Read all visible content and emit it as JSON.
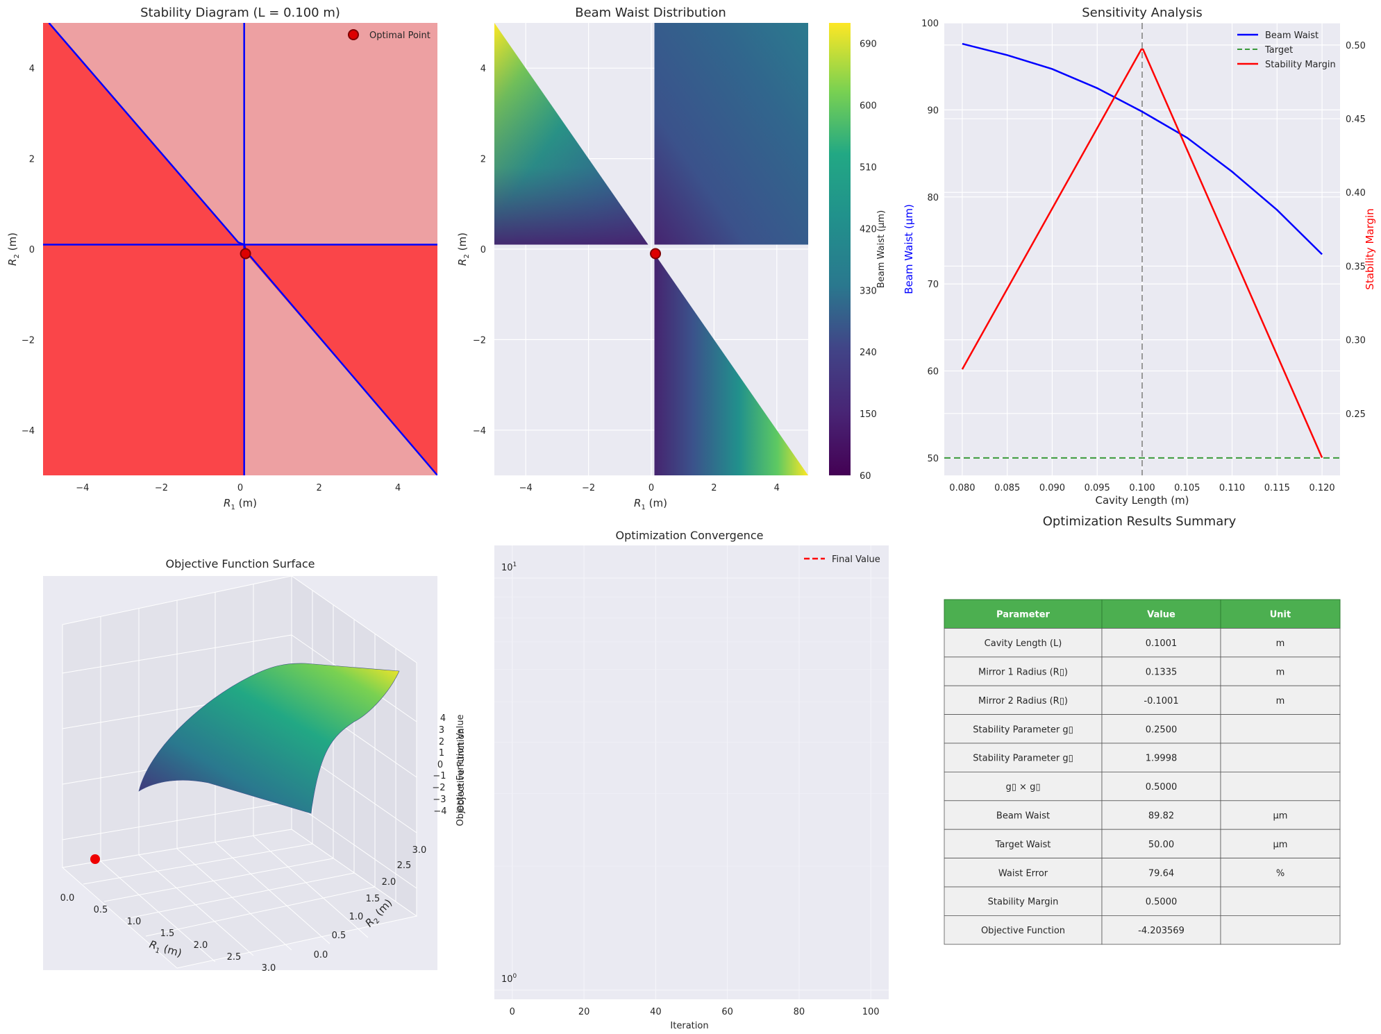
{
  "stability": {
    "title": "Stability Diagram (L = 0.100 m)",
    "xlabel": "R",
    "xlabel_sub": "1",
    "xlabel_unit": " (m)",
    "ylabel": "R",
    "ylabel_sub": "2",
    "ylabel_unit": " (m)",
    "legend": "Optimal Point",
    "colors": {
      "unstable": "#fa4549",
      "stable": "#eda0a2",
      "boundary": "#0000ff",
      "marker": "#dd0000"
    }
  },
  "waist_map": {
    "title": "Beam Waist Distribution",
    "xlabel": "R",
    "xlabel_sub": "1",
    "xlabel_unit": " (m)",
    "ylabel": "R",
    "ylabel_sub": "2",
    "ylabel_unit": " (m)",
    "colorbar_label": "Beam Waist (μm)",
    "colorbar_ticks": [
      "60",
      "150",
      "240",
      "330",
      "420",
      "510",
      "600",
      "690"
    ]
  },
  "sensitivity": {
    "title": "Sensitivity Analysis",
    "xlabel": "Cavity Length (m)",
    "ylabel_left": "Beam Waist (μm)",
    "ylabel_right": "Stability Margin",
    "legend": [
      "Beam Waist",
      "Target",
      "Stability Margin"
    ],
    "colors": {
      "waist": "#0000ff",
      "target": "#3a9a3a",
      "margin": "#ff0000",
      "vline": "#999999"
    }
  },
  "surface": {
    "title": "Objective Function Surface",
    "xlabel": "R",
    "xlabel_sub": "1",
    "xlabel_unit": " (m)",
    "ylabel": "R",
    "ylabel_sub": "2",
    "ylabel_unit": " (m)",
    "zlabel": "Objective Function Value",
    "x_ticks": [
      "0.0",
      "0.5",
      "1.0",
      "1.5",
      "2.0",
      "2.5",
      "3.0"
    ],
    "y_ticks": [
      "0.0",
      "0.5",
      "1.0",
      "1.5",
      "2.0",
      "2.5",
      "3.0"
    ],
    "z_ticks": [
      "−4",
      "−3",
      "−2",
      "−1",
      "0",
      "1",
      "2",
      "3",
      "4"
    ]
  },
  "convergence": {
    "title": "Optimization Convergence",
    "xlabel": "Iteration",
    "ylabel": "Objective Function",
    "legend": "Final Value",
    "y_ticks": [
      {
        "base": "10",
        "exp": "1"
      },
      {
        "base": "10",
        "exp": "0"
      }
    ]
  },
  "summary": {
    "title": "Optimization Results Summary",
    "header_color": "#4caf50",
    "columns": [
      "Parameter",
      "Value",
      "Unit"
    ],
    "rows": [
      [
        "Cavity Length (L)",
        "0.1001",
        "m"
      ],
      [
        "Mirror 1 Radius (R▯)",
        "0.1335",
        "m"
      ],
      [
        "Mirror 2 Radius (R▯)",
        "-0.1001",
        "m"
      ],
      [
        "Stability Parameter g▯",
        "0.2500",
        ""
      ],
      [
        "Stability Parameter g▯",
        "1.9998",
        ""
      ],
      [
        "g▯ × g▯",
        "0.5000",
        ""
      ],
      [
        "Beam Waist",
        "89.82",
        "μm"
      ],
      [
        "Target Waist",
        "50.00",
        "μm"
      ],
      [
        "Waist Error",
        "79.64",
        "%"
      ],
      [
        "Stability Margin",
        "0.5000",
        ""
      ],
      [
        "Objective Function",
        "-4.203569",
        ""
      ]
    ]
  },
  "chart_data": [
    {
      "type": "heatmap",
      "name": "stability",
      "xlim": [
        -5,
        5
      ],
      "ylim": [
        -5,
        5
      ],
      "x_ticks": [
        -4,
        -2,
        0,
        2,
        4
      ],
      "y_ticks": [
        -4,
        -2,
        0,
        2,
        4
      ],
      "L": 0.1,
      "optimal_point": [
        0.1335,
        -0.1001
      ],
      "grid": true
    },
    {
      "type": "heatmap",
      "name": "beam_waist",
      "xlim": [
        -5,
        5
      ],
      "ylim": [
        -5,
        5
      ],
      "x_ticks": [
        -4,
        -2,
        0,
        2,
        4
      ],
      "y_ticks": [
        -4,
        -2,
        0,
        2,
        4
      ],
      "clim": [
        60,
        720
      ],
      "optimal_point": [
        0.1335,
        -0.1001
      ]
    },
    {
      "type": "line",
      "name": "sensitivity",
      "x": [
        0.08,
        0.085,
        0.09,
        0.095,
        0.1,
        0.105,
        0.11,
        0.115,
        0.12
      ],
      "x_ticks": [
        0.08,
        0.085,
        0.09,
        0.095,
        0.1,
        0.105,
        0.11,
        0.115,
        0.12
      ],
      "xlim": [
        0.078,
        0.122
      ],
      "ylim_left": [
        48,
        100
      ],
      "ylim_right": [
        0.208,
        0.515
      ],
      "y_ticks_left": [
        50,
        60,
        70,
        80,
        90,
        100
      ],
      "y_ticks_right": [
        0.25,
        0.3,
        0.35,
        0.4,
        0.45,
        0.5
      ],
      "series": [
        {
          "name": "Beam Waist",
          "axis": "left",
          "values": [
            97.6,
            96.3,
            94.7,
            92.5,
            89.8,
            86.8,
            82.9,
            78.5,
            73.4
          ]
        },
        {
          "name": "Target",
          "axis": "left",
          "values": [
            50,
            50,
            50,
            50,
            50,
            50,
            50,
            50,
            50
          ]
        },
        {
          "name": "Stability Margin",
          "axis": "right",
          "x": [
            0.08,
            0.0999,
            0.1001,
            0.12
          ],
          "values": [
            0.28,
            0.497,
            0.497,
            0.22
          ]
        }
      ],
      "vline": 0.1
    },
    {
      "type": "surface",
      "name": "objective_surface",
      "xlim": [
        0,
        3
      ],
      "ylim": [
        0,
        3
      ],
      "zlim": [
        -4,
        4
      ],
      "optimal_point": [
        0.1335,
        -0.1001,
        -4.2036
      ]
    },
    {
      "type": "line",
      "name": "convergence",
      "x_ticks": [
        0,
        20,
        40,
        60,
        80,
        100
      ],
      "xlim": [
        -5,
        105
      ],
      "yscale": "log",
      "ylim": [
        0.95,
        12
      ],
      "series": [
        {
          "name": "Final Value",
          "values": []
        }
      ]
    }
  ]
}
